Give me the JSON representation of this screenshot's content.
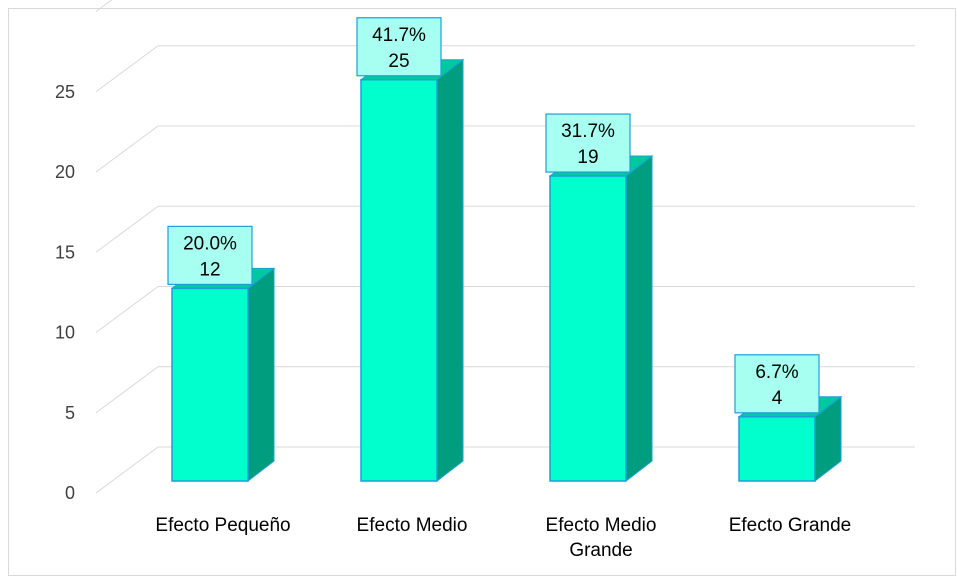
{
  "chart_data": {
    "type": "bar",
    "categories": [
      "Efecto Pequeño",
      "Efecto Medio",
      "Efecto Medio Grande",
      "Efecto Grande"
    ],
    "category_lines": [
      [
        "Efecto Pequeño"
      ],
      [
        "Efecto Medio"
      ],
      [
        "Efecto Medio",
        "Grande"
      ],
      [
        "Efecto Grande"
      ]
    ],
    "values": [
      12,
      25,
      19,
      4
    ],
    "percent_labels": [
      "20.0%",
      "41.7%",
      "31.7%",
      "6.7%"
    ],
    "value_labels": [
      "12",
      "25",
      "19",
      "4"
    ],
    "y_ticks": [
      0,
      5,
      10,
      15,
      20,
      25
    ],
    "ylim": [
      0,
      30
    ],
    "grid": true,
    "style": "3d-column",
    "colors": {
      "bar_front": "#00FFCC",
      "bar_side": "#009E7F",
      "bar_top": "#00C9A0",
      "bar_edge": "#1E9FD8",
      "label_fill": "#A6FFF0",
      "label_border": "#1E9FD8",
      "grid": "#d9d9d9",
      "text": "#404040"
    }
  }
}
